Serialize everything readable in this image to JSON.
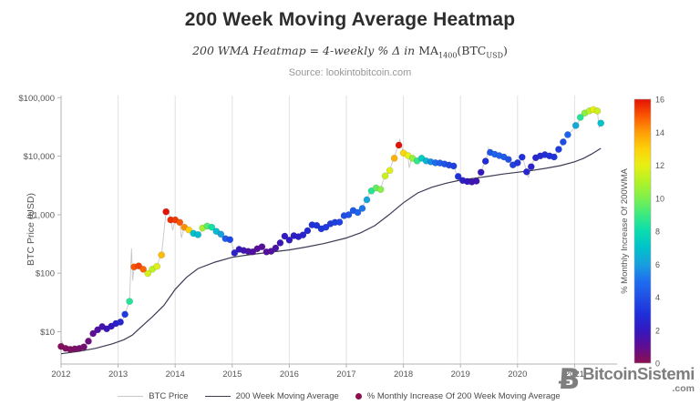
{
  "header": {
    "title": "200 Week Moving Average Heatmap",
    "subtitle": {
      "lead": "200 WMA Heatmap = 4-weekly % Δ in ",
      "ma": "MA",
      "ma_sub": "1400",
      "btc_open": "(BTC",
      "btc_sub": "USD",
      "close": ")"
    },
    "source": "Source: lookintobitcoin.com"
  },
  "chart_data": {
    "type": "scatter",
    "title": "200 Week Moving Average Heatmap",
    "xlabel": "",
    "ylabel": "BTC Price (USD)",
    "x_axis": {
      "ticks": [
        "2012",
        "2013",
        "2014",
        "2015",
        "2016",
        "2017",
        "2018",
        "2019",
        "2020",
        "2021"
      ],
      "lim": [
        2012,
        2021.745
      ]
    },
    "y_axis": {
      "label": "BTC Price (USD)",
      "scale": "log",
      "ticks": [
        {
          "value": 10,
          "label": "$10"
        },
        {
          "value": 100,
          "label": "$100"
        },
        {
          "value": 1000,
          "label": "$1,000"
        },
        {
          "value": 10000,
          "label": "$10,000"
        },
        {
          "value": 100000,
          "label": "$100,000"
        }
      ],
      "lim": [
        2.8,
        108600
      ]
    },
    "grid": "vertical-years",
    "legend_position": "bottom-center",
    "colorbar": {
      "label": "% Monthly Increase Of 200WMA",
      "min": 0,
      "max": 16,
      "ticks": [
        0,
        2,
        4,
        6,
        8,
        10,
        12,
        14,
        16
      ],
      "stops": [
        {
          "v": 0,
          "c": "#8c104e"
        },
        {
          "v": 1,
          "c": "#5f0d92"
        },
        {
          "v": 2,
          "c": "#3318c0"
        },
        {
          "v": 3,
          "c": "#1f30da"
        },
        {
          "v": 4,
          "c": "#2050e6"
        },
        {
          "v": 5,
          "c": "#1e6ff0"
        },
        {
          "v": 6,
          "c": "#18a0dd"
        },
        {
          "v": 7,
          "c": "#00c2cc"
        },
        {
          "v": 8,
          "c": "#0adcae"
        },
        {
          "v": 9,
          "c": "#3cea80"
        },
        {
          "v": 10,
          "c": "#7df04e"
        },
        {
          "v": 11,
          "c": "#b2f226"
        },
        {
          "v": 12,
          "c": "#e8ef14"
        },
        {
          "v": 13,
          "c": "#fed00a"
        },
        {
          "v": 14,
          "c": "#ff9d06"
        },
        {
          "v": 15,
          "c": "#fb5502"
        },
        {
          "v": 16,
          "c": "#e31205"
        }
      ]
    },
    "series": [
      {
        "name": "BTC Price",
        "type": "line",
        "color": "#c8c8c8"
      },
      {
        "name": "200 Week Moving Average",
        "type": "line",
        "color": "#3b3b54",
        "points": [
          [
            2012.0,
            4.2
          ],
          [
            2012.3,
            4.6
          ],
          [
            2012.6,
            5.2
          ],
          [
            2012.9,
            6.2
          ],
          [
            2013.1,
            7.3
          ],
          [
            2013.25,
            8.8
          ],
          [
            2013.4,
            12
          ],
          [
            2013.6,
            18
          ],
          [
            2013.8,
            28
          ],
          [
            2014.0,
            53
          ],
          [
            2014.2,
            85
          ],
          [
            2014.4,
            120
          ],
          [
            2014.7,
            155
          ],
          [
            2015.0,
            187
          ],
          [
            2015.3,
            207
          ],
          [
            2015.6,
            225
          ],
          [
            2016.0,
            250
          ],
          [
            2016.3,
            280
          ],
          [
            2016.6,
            320
          ],
          [
            2017.0,
            400
          ],
          [
            2017.25,
            490
          ],
          [
            2017.5,
            650
          ],
          [
            2017.75,
            1000
          ],
          [
            2018.0,
            1600
          ],
          [
            2018.25,
            2350
          ],
          [
            2018.5,
            2950
          ],
          [
            2018.75,
            3450
          ],
          [
            2019.0,
            3900
          ],
          [
            2019.25,
            4200
          ],
          [
            2019.5,
            4550
          ],
          [
            2019.75,
            4950
          ],
          [
            2020.0,
            5300
          ],
          [
            2020.25,
            5700
          ],
          [
            2020.5,
            6200
          ],
          [
            2020.75,
            6900
          ],
          [
            2021.0,
            8000
          ],
          [
            2021.15,
            9100
          ],
          [
            2021.3,
            10900
          ],
          [
            2021.46,
            13600
          ]
        ]
      },
      {
        "name": "% Monthly Increase Of 200 Week Moving Average",
        "type": "scatter",
        "point_format": [
          "year",
          "price_usd",
          "pct_monthly_increase"
        ],
        "points": [
          [
            2012.0,
            5.6,
            0.2
          ],
          [
            2012.08,
            5.2,
            0.25
          ],
          [
            2012.16,
            5.0,
            0.3
          ],
          [
            2012.24,
            5.1,
            0.35
          ],
          [
            2012.32,
            5.2,
            0.45
          ],
          [
            2012.4,
            5.5,
            0.55
          ],
          [
            2012.48,
            6.9,
            0.7
          ],
          [
            2012.56,
            9.3,
            1.0
          ],
          [
            2012.64,
            10.8,
            1.3
          ],
          [
            2012.72,
            12.2,
            1.6
          ],
          [
            2012.8,
            11.2,
            1.8
          ],
          [
            2012.88,
            12.4,
            2.0
          ],
          [
            2012.96,
            13.8,
            2.3
          ],
          [
            2013.04,
            14.6,
            2.6
          ],
          [
            2013.12,
            19.8,
            3.4
          ],
          [
            2013.2,
            33,
            8.5
          ],
          [
            2013.28,
            128,
            15.0
          ],
          [
            2013.36,
            133,
            15.3
          ],
          [
            2013.44,
            117,
            14.8
          ],
          [
            2013.52,
            99,
            11.6
          ],
          [
            2013.6,
            117,
            11.2
          ],
          [
            2013.68,
            131,
            11.8
          ],
          [
            2013.76,
            205,
            13.4
          ],
          [
            2013.84,
            1120,
            16.0
          ],
          [
            2013.92,
            815,
            15.6
          ],
          [
            2014.0,
            815,
            15.4
          ],
          [
            2014.08,
            740,
            15.0
          ],
          [
            2014.16,
            610,
            14.2
          ],
          [
            2014.24,
            550,
            13.0
          ],
          [
            2014.32,
            480,
            7.0
          ],
          [
            2014.4,
            455,
            6.8
          ],
          [
            2014.48,
            590,
            10.8
          ],
          [
            2014.56,
            640,
            9.4
          ],
          [
            2014.64,
            610,
            8.2
          ],
          [
            2014.72,
            520,
            6.8
          ],
          [
            2014.8,
            465,
            6.0
          ],
          [
            2014.88,
            390,
            4.4
          ],
          [
            2014.96,
            375,
            3.8
          ],
          [
            2015.04,
            222,
            2.4
          ],
          [
            2015.12,
            256,
            2.0
          ],
          [
            2015.2,
            245,
            1.7
          ],
          [
            2015.28,
            236,
            1.5
          ],
          [
            2015.36,
            232,
            1.3
          ],
          [
            2015.44,
            262,
            1.2
          ],
          [
            2015.52,
            283,
            1.2
          ],
          [
            2015.6,
            231,
            1.2
          ],
          [
            2015.68,
            237,
            1.3
          ],
          [
            2015.76,
            270,
            1.5
          ],
          [
            2015.84,
            330,
            1.8
          ],
          [
            2015.92,
            430,
            2.1
          ],
          [
            2016.0,
            368,
            2.1
          ],
          [
            2016.08,
            437,
            2.2
          ],
          [
            2016.16,
            420,
            2.3
          ],
          [
            2016.24,
            450,
            2.5
          ],
          [
            2016.32,
            532,
            2.7
          ],
          [
            2016.4,
            670,
            3.0
          ],
          [
            2016.48,
            655,
            3.1
          ],
          [
            2016.56,
            575,
            3.2
          ],
          [
            2016.64,
            610,
            3.3
          ],
          [
            2016.72,
            700,
            3.4
          ],
          [
            2016.8,
            740,
            3.5
          ],
          [
            2016.88,
            745,
            3.6
          ],
          [
            2016.96,
            960,
            3.9
          ],
          [
            2017.04,
            995,
            4.1
          ],
          [
            2017.12,
            1180,
            4.3
          ],
          [
            2017.2,
            1090,
            4.6
          ],
          [
            2017.28,
            1280,
            5.1
          ],
          [
            2017.36,
            1800,
            6.2
          ],
          [
            2017.44,
            2550,
            8.6
          ],
          [
            2017.52,
            2870,
            9.6
          ],
          [
            2017.6,
            2700,
            10.2
          ],
          [
            2017.68,
            4600,
            11.4
          ],
          [
            2017.76,
            5700,
            11.8
          ],
          [
            2017.84,
            9200,
            13.6
          ],
          [
            2017.92,
            15400,
            16.0
          ],
          [
            2018.0,
            11300,
            12.8
          ],
          [
            2018.08,
            10200,
            12.0
          ],
          [
            2018.16,
            9200,
            10.4
          ],
          [
            2018.24,
            8300,
            8.8
          ],
          [
            2018.32,
            9200,
            7.4
          ],
          [
            2018.4,
            8300,
            6.6
          ],
          [
            2018.48,
            8000,
            5.6
          ],
          [
            2018.56,
            7700,
            4.9
          ],
          [
            2018.64,
            7650,
            4.5
          ],
          [
            2018.72,
            7350,
            4.1
          ],
          [
            2018.8,
            7050,
            3.8
          ],
          [
            2018.88,
            6800,
            3.5
          ],
          [
            2018.96,
            4500,
            3.0
          ],
          [
            2019.04,
            3850,
            2.3
          ],
          [
            2019.12,
            3700,
            2.0
          ],
          [
            2019.2,
            3630,
            1.8
          ],
          [
            2019.28,
            3750,
            1.7
          ],
          [
            2019.36,
            5300,
            1.9
          ],
          [
            2019.44,
            8200,
            2.8
          ],
          [
            2019.52,
            11600,
            4.2
          ],
          [
            2019.6,
            10800,
            4.6
          ],
          [
            2019.68,
            10200,
            4.6
          ],
          [
            2019.76,
            9700,
            4.4
          ],
          [
            2019.84,
            8800,
            4.0
          ],
          [
            2019.92,
            7100,
            3.5
          ],
          [
            2020.0,
            7700,
            3.2
          ],
          [
            2020.08,
            9600,
            3.0
          ],
          [
            2020.16,
            5400,
            2.6
          ],
          [
            2020.24,
            6600,
            2.5
          ],
          [
            2020.32,
            9400,
            2.6
          ],
          [
            2020.4,
            10100,
            2.7
          ],
          [
            2020.48,
            10600,
            2.9
          ],
          [
            2020.56,
            10100,
            3.0
          ],
          [
            2020.64,
            9700,
            3.1
          ],
          [
            2020.72,
            13100,
            3.4
          ],
          [
            2020.8,
            17500,
            3.9
          ],
          [
            2020.88,
            23300,
            4.6
          ],
          [
            2021.02,
            33400,
            6.3
          ],
          [
            2021.1,
            46000,
            8.6
          ],
          [
            2021.18,
            54500,
            10.2
          ],
          [
            2021.26,
            59500,
            11.2
          ],
          [
            2021.33,
            62500,
            12.0
          ],
          [
            2021.4,
            59000,
            11.4
          ],
          [
            2021.46,
            36700,
            7.0
          ]
        ]
      }
    ],
    "price_line_extras": [
      [
        2012.01,
        7.0
      ],
      [
        2013.235,
        266
      ],
      [
        2013.255,
        75
      ],
      [
        2013.855,
        1242
      ],
      [
        2013.955,
        540
      ],
      [
        2014.11,
        400
      ],
      [
        2017.935,
        19650
      ],
      [
        2018.1,
        6300
      ],
      [
        2019.49,
        13800
      ],
      [
        2020.19,
        4300
      ],
      [
        2021.31,
        64800
      ],
      [
        2021.43,
        30500
      ]
    ]
  },
  "legend": {
    "items": [
      {
        "type": "line",
        "color": "#c8c8c8",
        "label": "BTC Price"
      },
      {
        "type": "line",
        "color": "#3b3b54",
        "label": "200 Week Moving Average"
      },
      {
        "type": "dot",
        "color": "#8c104e",
        "label": "% Monthly Increase Of 200 Week Moving Average"
      }
    ]
  },
  "branding": {
    "glyph": "Ƀ",
    "name": "BitcoinSistemi",
    "tld": ".com"
  }
}
